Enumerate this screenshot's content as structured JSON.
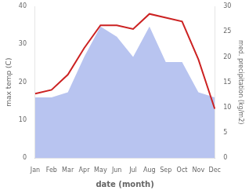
{
  "chart_data": {
    "type": "line",
    "xlabel": "date (month)",
    "ylabel": "max temp (C)",
    "y2label": "med. precipitation (kg/m2)",
    "categories": [
      "Jan",
      "Feb",
      "Mar",
      "Apr",
      "May",
      "Jun",
      "Jul",
      "Aug",
      "Sep",
      "Oct",
      "Nov",
      "Dec"
    ],
    "series": [
      {
        "type": "line",
        "color": "#cc2222",
        "values": [
          17.0,
          18.0,
          22.0,
          29.0,
          35.0,
          35.0,
          34.0,
          38.0,
          37.0,
          36.0,
          26.0,
          13.0
        ]
      },
      {
        "type": "area",
        "color": "#b8c4f0",
        "axis": "y2",
        "values": [
          12.0,
          12.0,
          13.0,
          20.0,
          26.0,
          24.0,
          20.0,
          26.0,
          19.0,
          19.0,
          13.0,
          12.0
        ]
      }
    ],
    "ylim": [
      0,
      40
    ],
    "yticks": [
      0,
      10,
      20,
      30,
      40
    ],
    "y2lim": [
      0,
      30
    ],
    "y2ticks": [
      0,
      5,
      10,
      15,
      20,
      25,
      30
    ],
    "grid": false
  }
}
